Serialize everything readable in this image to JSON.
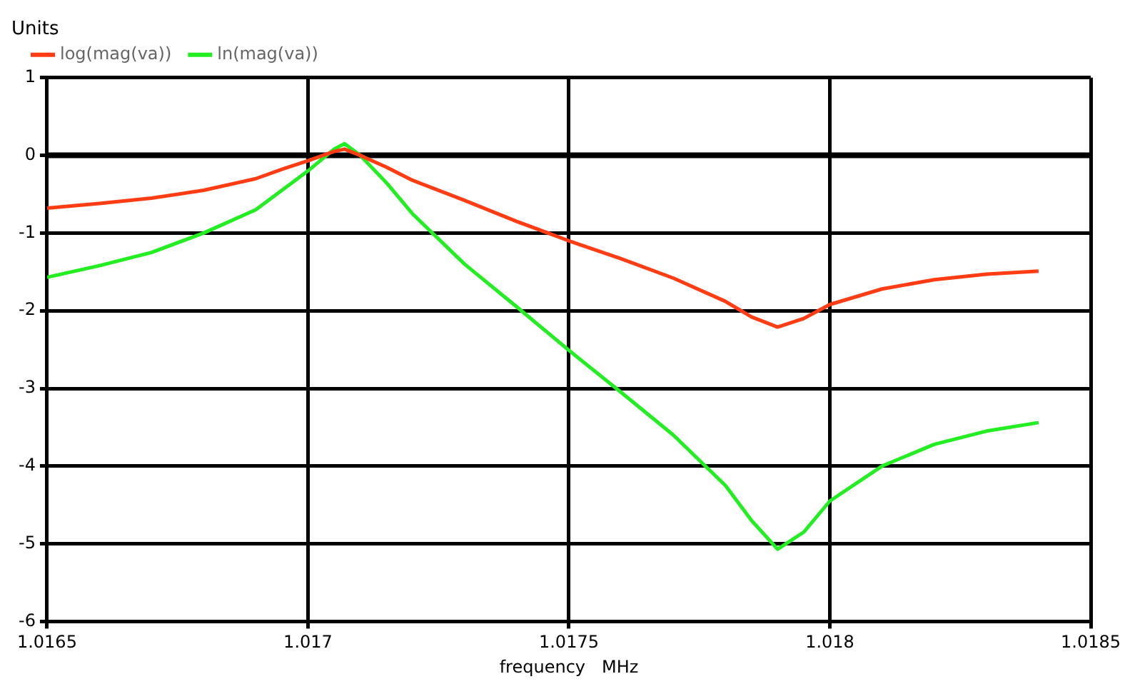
{
  "chart_data": {
    "type": "line",
    "ylabel": "Units",
    "xlabel": "frequency   MHz",
    "legend": "top left",
    "grid": true,
    "marker": "none",
    "line_style": "solid",
    "xlim": [
      1.0165,
      1.0185
    ],
    "xticks": [
      1.0165,
      1.017,
      1.0175,
      1.018,
      1.0185
    ],
    "ylim": [
      -6,
      1
    ],
    "yticks": [
      -6,
      -5,
      -4,
      -3,
      -2,
      -1,
      0,
      1
    ],
    "ref_lines": [
      {
        "axis": "y",
        "value": 0,
        "color": "#000000"
      }
    ],
    "series": [
      {
        "name": "log(mag(va))",
        "color": "#ff3c14",
        "x": [
          1.0165,
          1.0166,
          1.0167,
          1.0168,
          1.0169,
          1.01695,
          1.017,
          1.01705,
          1.01707,
          1.0171,
          1.01715,
          1.0172,
          1.0173,
          1.0174,
          1.0175,
          1.0176,
          1.0177,
          1.0178,
          1.01785,
          1.0179,
          1.01795,
          1.018,
          1.0181,
          1.0182,
          1.0183,
          1.0184
        ],
        "values": [
          -0.68,
          -0.62,
          -0.55,
          -0.45,
          -0.3,
          -0.18,
          -0.07,
          0.05,
          0.08,
          0.0,
          -0.15,
          -0.32,
          -0.58,
          -0.85,
          -1.1,
          -1.33,
          -1.58,
          -1.88,
          -2.08,
          -2.21,
          -2.1,
          -1.92,
          -1.72,
          -1.6,
          -1.53,
          -1.49
        ]
      },
      {
        "name": "ln(mag(va))",
        "color": "#22ee22",
        "x": [
          1.0165,
          1.0166,
          1.0167,
          1.0168,
          1.0169,
          1.01695,
          1.017,
          1.01705,
          1.01707,
          1.0171,
          1.01715,
          1.0172,
          1.0173,
          1.0174,
          1.0175,
          1.0176,
          1.0177,
          1.0178,
          1.01785,
          1.0179,
          1.01795,
          1.018,
          1.0181,
          1.0182,
          1.0183,
          1.0184
        ],
        "values": [
          -1.57,
          -1.42,
          -1.25,
          -1.0,
          -0.7,
          -0.45,
          -0.2,
          0.08,
          0.15,
          0.0,
          -0.35,
          -0.75,
          -1.4,
          -1.95,
          -2.51,
          -3.05,
          -3.6,
          -4.25,
          -4.7,
          -5.07,
          -4.85,
          -4.45,
          -4.0,
          -3.72,
          -3.55,
          -3.44
        ]
      }
    ]
  }
}
